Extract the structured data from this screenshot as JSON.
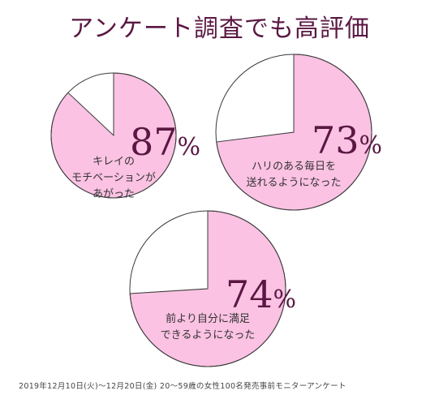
{
  "title": "アンケート調査でも高評価",
  "colors": {
    "pink": "#fbc2e3",
    "outline": "#3a3a3a",
    "accent": "#5a1742"
  },
  "chart_data": [
    {
      "type": "pie",
      "label": "キレイの\nモチベーションが\nあがった",
      "percent_value": 87,
      "percent_num": "87",
      "unit": "%"
    },
    {
      "type": "pie",
      "label": "ハリのある毎日を\n送れるようになった",
      "percent_value": 73,
      "percent_num": "73",
      "unit": "%"
    },
    {
      "type": "pie",
      "label": "前より自分に満足\nできるようになった",
      "percent_value": 74,
      "percent_num": "74",
      "unit": "%"
    }
  ],
  "footnote": "2019年12月10日(火)〜12月20日(金) 20〜59歳の女性100名発売事前モニターアンケート"
}
